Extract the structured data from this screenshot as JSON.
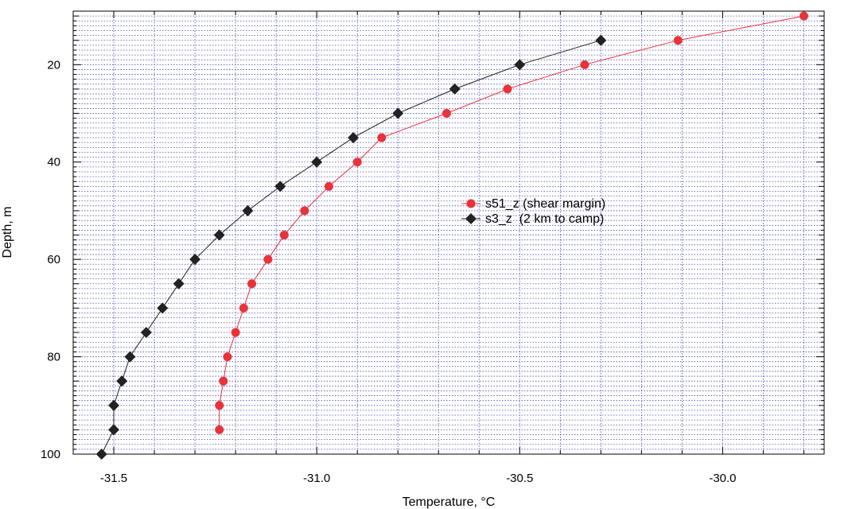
{
  "chart_data": {
    "type": "line",
    "xlabel": "Temperature, °C",
    "ylabel": "Depth, m",
    "xlim": [
      -31.6,
      -29.75
    ],
    "ylim": [
      100,
      9
    ],
    "y_inverted": true,
    "x_ticks": [
      -31.5,
      -31.0,
      -30.5,
      -30.0
    ],
    "x_tick_labels": [
      "-31.5",
      "-31.0",
      "-30.5",
      "-30.0"
    ],
    "y_ticks": [
      20,
      40,
      60,
      80,
      100
    ],
    "y_tick_labels": [
      "20",
      "40",
      "60",
      "80",
      "100"
    ],
    "grid": true,
    "legend_position": "center-right",
    "series": [
      {
        "name": "s51_z (shear margin)",
        "color": "#e8333a",
        "marker": "circle",
        "points": [
          {
            "x": -29.8,
            "y": 10
          },
          {
            "x": -30.11,
            "y": 15
          },
          {
            "x": -30.34,
            "y": 20
          },
          {
            "x": -30.53,
            "y": 25
          },
          {
            "x": -30.68,
            "y": 30
          },
          {
            "x": -30.84,
            "y": 35
          },
          {
            "x": -30.9,
            "y": 40
          },
          {
            "x": -30.97,
            "y": 45
          },
          {
            "x": -31.03,
            "y": 50
          },
          {
            "x": -31.08,
            "y": 55
          },
          {
            "x": -31.12,
            "y": 60
          },
          {
            "x": -31.16,
            "y": 65
          },
          {
            "x": -31.18,
            "y": 70
          },
          {
            "x": -31.2,
            "y": 75
          },
          {
            "x": -31.22,
            "y": 80
          },
          {
            "x": -31.23,
            "y": 85
          },
          {
            "x": -31.24,
            "y": 90
          },
          {
            "x": -31.24,
            "y": 95
          }
        ]
      },
      {
        "name": "s3_z  (2 km to camp)",
        "color": "#222222",
        "marker": "diamond",
        "points": [
          {
            "x": -30.3,
            "y": 15
          },
          {
            "x": -30.5,
            "y": 20
          },
          {
            "x": -30.66,
            "y": 25
          },
          {
            "x": -30.8,
            "y": 30
          },
          {
            "x": -30.91,
            "y": 35
          },
          {
            "x": -31.0,
            "y": 40
          },
          {
            "x": -31.09,
            "y": 45
          },
          {
            "x": -31.17,
            "y": 50
          },
          {
            "x": -31.24,
            "y": 55
          },
          {
            "x": -31.3,
            "y": 60
          },
          {
            "x": -31.34,
            "y": 65
          },
          {
            "x": -31.38,
            "y": 70
          },
          {
            "x": -31.42,
            "y": 75
          },
          {
            "x": -31.46,
            "y": 80
          },
          {
            "x": -31.48,
            "y": 85
          },
          {
            "x": -31.5,
            "y": 90
          },
          {
            "x": -31.5,
            "y": 95
          },
          {
            "x": -31.53,
            "y": 100
          }
        ]
      }
    ]
  }
}
